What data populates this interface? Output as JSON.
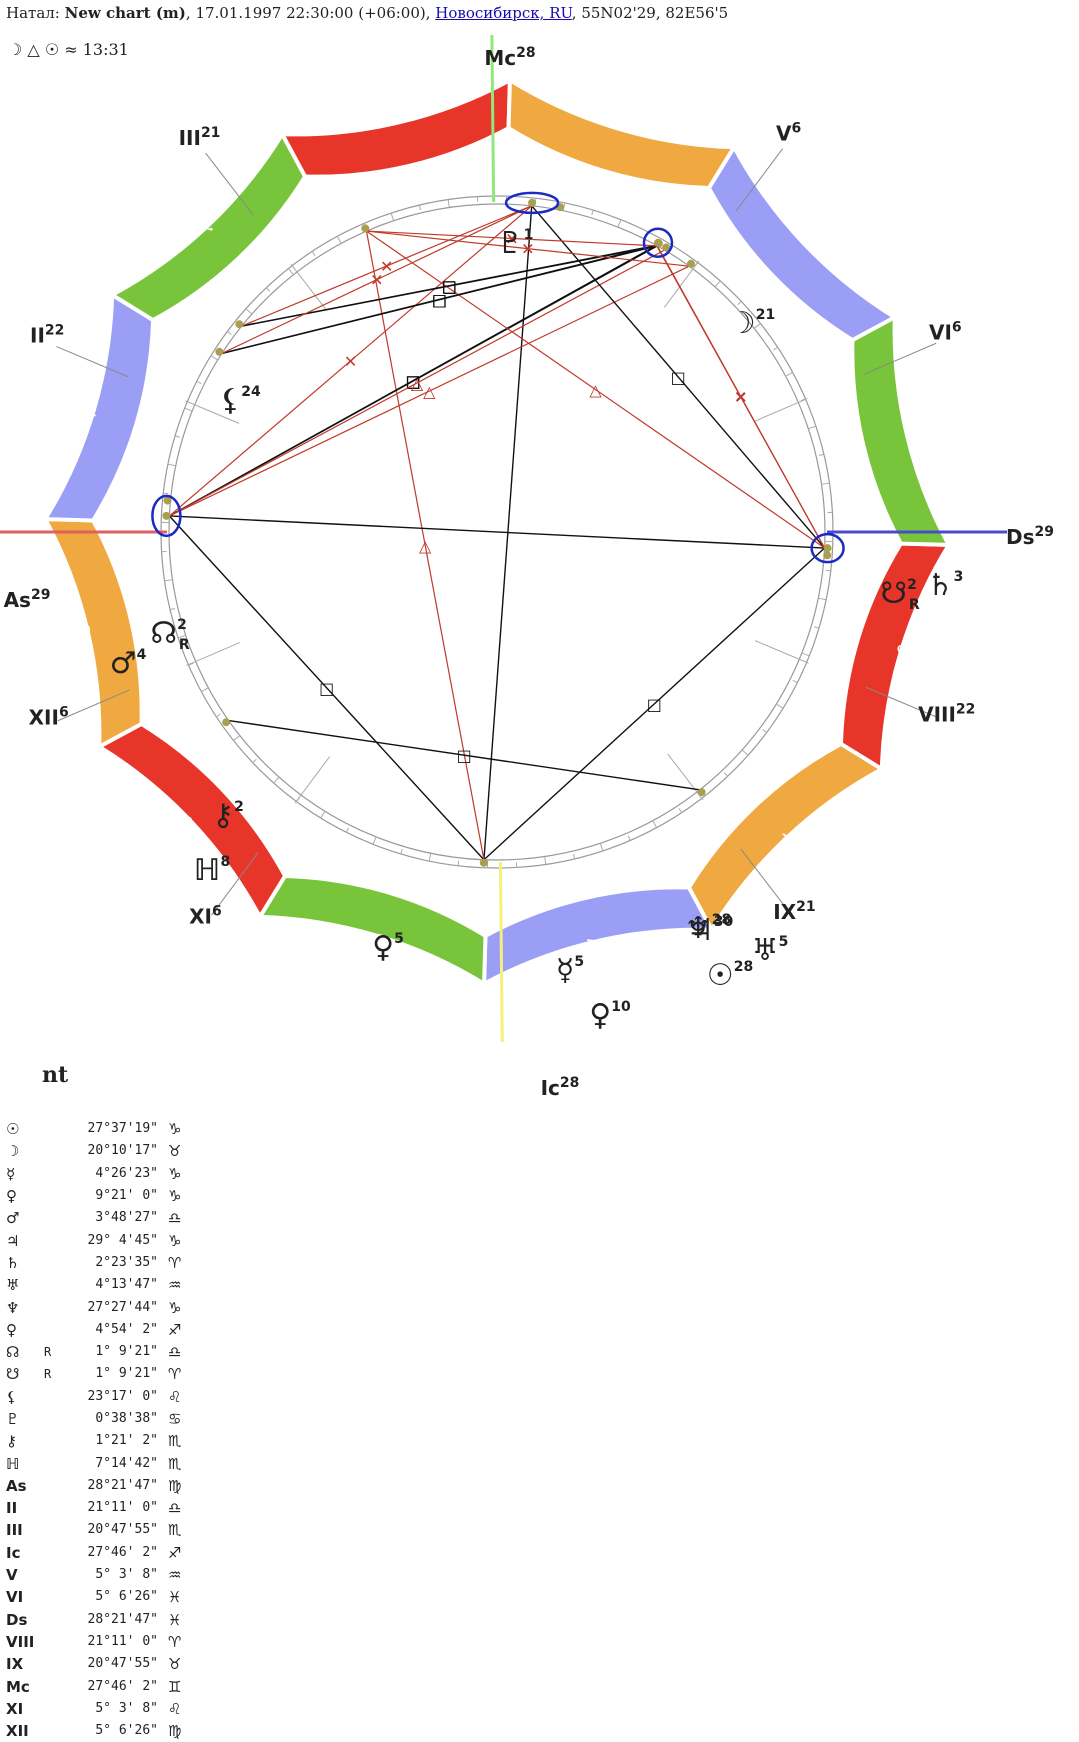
{
  "header": {
    "prefix": "Натал: ",
    "chart_title": "New chart (m)",
    "datetime": ", 17.01.1997 22:30:00 (+06:00), ",
    "place_link": "Новосибирск, RU",
    "coords": ", 55N02'29, 82E56'5"
  },
  "subheader": "☽ △ ☉ ≈ 13:31",
  "chart_name": "nt",
  "colors": {
    "fire": "#e8352a",
    "earth": "#f0a840",
    "air": "#9b9ef5",
    "water": "#78c43a",
    "aspect_hard": "#111111",
    "aspect_soft": "#c0392b",
    "mc_line": "#f5f07a",
    "ic_line": "#8ee87a",
    "asc_line": "#e06060",
    "dsc_line": "#4a4acc",
    "conjunction": "#1a2bc4",
    "planet_dot": "#a8a050"
  },
  "zodiac_signs": [
    {
      "glyph": "♈",
      "element": "fire"
    },
    {
      "glyph": "♉",
      "element": "earth"
    },
    {
      "glyph": "♊",
      "element": "air"
    },
    {
      "glyph": "♋",
      "element": "water"
    },
    {
      "glyph": "♌",
      "element": "fire"
    },
    {
      "glyph": "♍",
      "element": "earth"
    },
    {
      "glyph": "♎",
      "element": "air"
    },
    {
      "glyph": "♏",
      "element": "water"
    },
    {
      "glyph": "♐",
      "element": "fire"
    },
    {
      "glyph": "♑",
      "element": "earth"
    },
    {
      "glyph": "♒",
      "element": "air"
    },
    {
      "glyph": "♓",
      "element": "water"
    }
  ],
  "houses": [
    {
      "name": "As",
      "degree": "29",
      "lon": 178.36,
      "angle": true
    },
    {
      "name": "II",
      "degree": "22",
      "lon": 201.19,
      "angle": false
    },
    {
      "name": "III",
      "degree": "21",
      "lon": 230.8,
      "angle": false
    },
    {
      "name": "Ic",
      "degree": "28",
      "lon": 267.77,
      "angle": true
    },
    {
      "name": "V",
      "degree": "6",
      "lon": 305.05,
      "angle": false
    },
    {
      "name": "VI",
      "degree": "6",
      "lon": 335.1,
      "angle": false
    },
    {
      "name": "Ds",
      "degree": "29",
      "lon": 358.36,
      "angle": true
    },
    {
      "name": "VIII",
      "degree": "22",
      "lon": 21.19,
      "angle": false
    },
    {
      "name": "IX",
      "degree": "21",
      "lon": 50.8,
      "angle": false
    },
    {
      "name": "Mc",
      "degree": "28",
      "lon": 87.77,
      "angle": true
    },
    {
      "name": "XI",
      "degree": "6",
      "lon": 125.05,
      "angle": false
    },
    {
      "name": "XII",
      "degree": "6",
      "lon": 155.1,
      "angle": false
    }
  ],
  "planets": [
    {
      "id": "sun",
      "glyph": "☉",
      "deg": "28",
      "lon": 297.63
    },
    {
      "id": "moon",
      "glyph": "☽",
      "deg": "21",
      "lon": 50.17
    },
    {
      "id": "mercury",
      "glyph": "☿",
      "deg": "5",
      "lon": 274.44
    },
    {
      "id": "venus",
      "glyph": "♀",
      "deg": "10",
      "lon": 279.36
    },
    {
      "id": "mars",
      "glyph": "♂",
      "deg": "4",
      "lon": 183.81
    },
    {
      "id": "jupiter",
      "glyph": "♃",
      "deg": "30",
      "lon": 299.08
    },
    {
      "id": "saturn",
      "glyph": "♄",
      "deg": "3",
      "lon": 2.39
    },
    {
      "id": "uranus",
      "glyph": "♅",
      "deg": "5",
      "lon": 304.23
    },
    {
      "id": "neptune",
      "glyph": "♆",
      "deg": "28",
      "lon": 297.46
    },
    {
      "id": "pluto",
      "glyph": "♀",
      "deg": "5",
      "lon": 244.91
    },
    {
      "id": "node",
      "glyph": "☊",
      "deg": "2",
      "lon": 181.16,
      "retro": "R"
    },
    {
      "id": "snode",
      "glyph": "☋",
      "deg": "2",
      "lon": 1.16,
      "retro": "R"
    },
    {
      "id": "lilith",
      "glyph": "⚸",
      "deg": "24",
      "lon": 143.28
    },
    {
      "id": "proserpina",
      "glyph": "♇",
      "deg": "1",
      "lon": 90.64
    },
    {
      "id": "chiron",
      "glyph": "⚷",
      "deg": "2",
      "lon": 211.35
    },
    {
      "id": "h8",
      "glyph": "ℍ",
      "deg": "8",
      "lon": 217.25
    }
  ],
  "aspects": [
    {
      "a": "proserpina",
      "b": "node",
      "type": "square"
    },
    {
      "a": "proserpina",
      "b": "snode",
      "type": "square"
    },
    {
      "a": "proserpina",
      "b": "mercury",
      "type": "opposition"
    },
    {
      "a": "proserpina",
      "b": "pluto",
      "type": "trine"
    },
    {
      "a": "moon",
      "b": "lilith",
      "type": "square"
    },
    {
      "a": "node",
      "b": "snode",
      "type": "opposition"
    },
    {
      "a": "node",
      "b": "neptune",
      "type": "square"
    },
    {
      "a": "node",
      "b": "sun",
      "type": "square"
    },
    {
      "a": "node",
      "b": "jupiter",
      "type": "trine"
    },
    {
      "a": "node",
      "b": "uranus",
      "type": "trine"
    },
    {
      "a": "node",
      "b": "mercury",
      "type": "quincunx"
    },
    {
      "a": "snode",
      "b": "mercury",
      "type": "square"
    },
    {
      "a": "snode",
      "b": "pluto",
      "type": "trine"
    },
    {
      "a": "snode",
      "b": "neptune",
      "type": "quincunx"
    },
    {
      "a": "snode",
      "b": "sun",
      "type": "quincunx"
    },
    {
      "a": "chiron",
      "b": "neptune",
      "type": "square"
    },
    {
      "a": "chiron",
      "b": "sun",
      "type": "square"
    },
    {
      "a": "h8",
      "b": "neptune",
      "type": "square"
    },
    {
      "a": "h8",
      "b": "sun",
      "type": "square"
    },
    {
      "a": "chiron",
      "b": "mercury",
      "type": "quincunx"
    },
    {
      "a": "h8",
      "b": "mercury",
      "type": "quincunx"
    },
    {
      "a": "pluto",
      "b": "uranus",
      "type": "quincunx"
    },
    {
      "a": "pluto",
      "b": "sun",
      "type": "quincunx"
    }
  ],
  "positions": [
    {
      "symbol": "☉",
      "r": "",
      "value": "27°37'19\"",
      "sign": "♑"
    },
    {
      "symbol": "☽",
      "r": "",
      "value": "20°10'17\"",
      "sign": "♉"
    },
    {
      "symbol": "☿",
      "r": "",
      "value": "4°26'23\"",
      "sign": "♑"
    },
    {
      "symbol": "♀",
      "r": "",
      "value": "9°21' 0\"",
      "sign": "♑"
    },
    {
      "symbol": "♂",
      "r": "",
      "value": "3°48'27\"",
      "sign": "♎"
    },
    {
      "symbol": "♃",
      "r": "",
      "value": "29° 4'45\"",
      "sign": "♑"
    },
    {
      "symbol": "♄",
      "r": "",
      "value": "2°23'35\"",
      "sign": "♈"
    },
    {
      "symbol": "♅",
      "r": "",
      "value": "4°13'47\"",
      "sign": "♒"
    },
    {
      "symbol": "♆",
      "r": "",
      "value": "27°27'44\"",
      "sign": "♑"
    },
    {
      "symbol": "♀",
      "r": "",
      "value": "4°54' 2\"",
      "sign": "♐"
    },
    {
      "symbol": "☊",
      "r": "R",
      "value": "1° 9'21\"",
      "sign": "♎"
    },
    {
      "symbol": "☋",
      "r": "R",
      "value": "1° 9'21\"",
      "sign": "♈"
    },
    {
      "symbol": "⚸",
      "r": "",
      "value": "23°17' 0\"",
      "sign": "♌"
    },
    {
      "symbol": "♇",
      "r": "",
      "value": "0°38'38\"",
      "sign": "♋"
    },
    {
      "symbol": "⚷",
      "r": "",
      "value": "1°21' 2\"",
      "sign": "♏"
    },
    {
      "symbol": "ℍ",
      "r": "",
      "value": "7°14'42\"",
      "sign": "♏"
    },
    {
      "symbol": "As",
      "r": "",
      "value": "28°21'47\"",
      "sign": "♍"
    },
    {
      "symbol": "II",
      "r": "",
      "value": "21°11' 0\"",
      "sign": "♎"
    },
    {
      "symbol": "III",
      "r": "",
      "value": "20°47'55\"",
      "sign": "♏"
    },
    {
      "symbol": "Ic",
      "r": "",
      "value": "27°46' 2\"",
      "sign": "♐"
    },
    {
      "symbol": "V",
      "r": "",
      "value": "5° 3' 8\"",
      "sign": "♒"
    },
    {
      "symbol": "VI",
      "r": "",
      "value": "5° 6'26\"",
      "sign": "♓"
    },
    {
      "symbol": "Ds",
      "r": "",
      "value": "28°21'47\"",
      "sign": "♓"
    },
    {
      "symbol": "VIII",
      "r": "",
      "value": "21°11' 0\"",
      "sign": "♈"
    },
    {
      "symbol": "IX",
      "r": "",
      "value": "20°47'55\"",
      "sign": "♉"
    },
    {
      "symbol": "Mc",
      "r": "",
      "value": "27°46' 2\"",
      "sign": "♊"
    },
    {
      "symbol": "XI",
      "r": "",
      "value": "5° 3' 8\"",
      "sign": "♌"
    },
    {
      "symbol": "XII",
      "r": "",
      "value": "5° 6'26\"",
      "sign": "♍"
    }
  ]
}
